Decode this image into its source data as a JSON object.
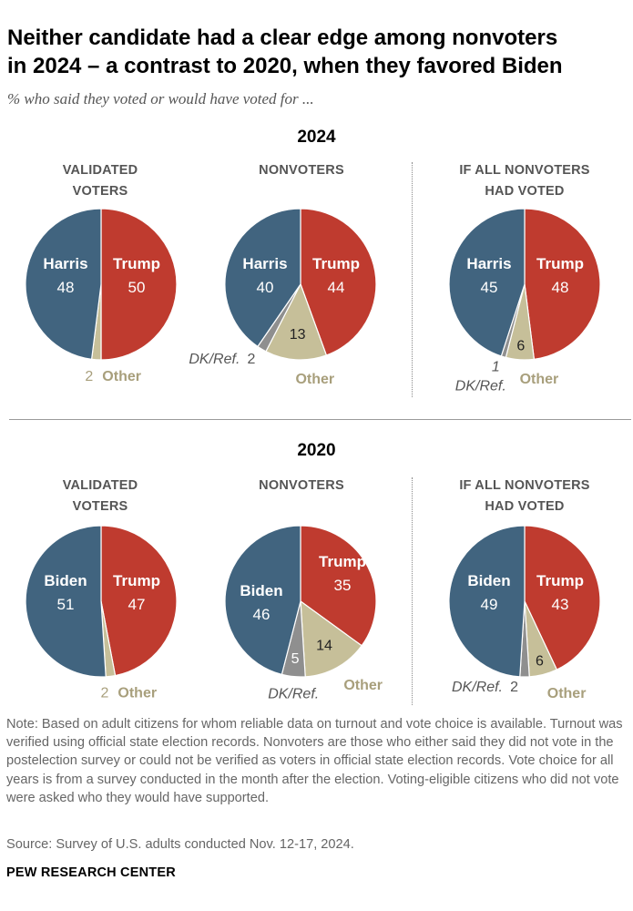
{
  "title_lines": [
    "Neither candidate had a clear edge among nonvoters",
    "in 2024 – a contrast to 2020, when they favored Biden"
  ],
  "subtitle": "% who said they voted or would have voted for ...",
  "colors": {
    "dem": "#41647f",
    "rep": "#bf3b2f",
    "other": "#c6bf99",
    "dk": "#8f8f8f",
    "label_dark": "#222222",
    "label_other": "#a89f7c",
    "label_dk": "#555555"
  },
  "sections": [
    {
      "year": "2024",
      "headers": [
        [
          "VALIDATED",
          "VOTERS"
        ],
        [
          "NONVOTERS"
        ],
        [
          "IF ALL NONVOTERS",
          "HAD VOTED"
        ]
      ]
    },
    {
      "year": "2020",
      "headers": [
        [
          "VALIDATED",
          "VOTERS"
        ],
        [
          "NONVOTERS"
        ],
        [
          "IF ALL NONVOTERS",
          "HAD VOTED"
        ]
      ]
    }
  ],
  "chart_data": [
    {
      "type": "pie",
      "year": "2024",
      "title": "VALIDATED VOTERS",
      "slices": [
        {
          "label": "Trump",
          "value": 50
        },
        {
          "label": "Other",
          "value": 2
        },
        {
          "label": "Harris",
          "value": 48
        }
      ]
    },
    {
      "type": "pie",
      "year": "2024",
      "title": "NONVOTERS",
      "slices": [
        {
          "label": "Trump",
          "value": 44
        },
        {
          "label": "Other",
          "value": 13
        },
        {
          "label": "DK/Ref.",
          "value": 2
        },
        {
          "label": "Harris",
          "value": 40
        }
      ]
    },
    {
      "type": "pie",
      "year": "2024",
      "title": "IF ALL NONVOTERS HAD VOTED",
      "slices": [
        {
          "label": "Trump",
          "value": 48
        },
        {
          "label": "Other",
          "value": 6
        },
        {
          "label": "DK/Ref.",
          "value": 1
        },
        {
          "label": "Harris",
          "value": 45
        }
      ]
    },
    {
      "type": "pie",
      "year": "2020",
      "title": "VALIDATED VOTERS",
      "slices": [
        {
          "label": "Trump",
          "value": 47
        },
        {
          "label": "Other",
          "value": 2
        },
        {
          "label": "Biden",
          "value": 51
        }
      ]
    },
    {
      "type": "pie",
      "year": "2020",
      "title": "NONVOTERS",
      "slices": [
        {
          "label": "Trump",
          "value": 35
        },
        {
          "label": "Other",
          "value": 14
        },
        {
          "label": "DK/Ref.",
          "value": 5
        },
        {
          "label": "Biden",
          "value": 46
        }
      ]
    },
    {
      "type": "pie",
      "year": "2020",
      "title": "IF ALL NONVOTERS HAD VOTED",
      "slices": [
        {
          "label": "Trump",
          "value": 43
        },
        {
          "label": "Other",
          "value": 6
        },
        {
          "label": "DK/Ref.",
          "value": 2
        },
        {
          "label": "Biden",
          "value": 49
        }
      ]
    }
  ],
  "note": "Note: Based on adult citizens for whom reliable data on turnout and vote choice is available. Turnout was verified using official state election records. Nonvoters are those who either said they did not vote in the postelection survey or could not be verified as voters in official state election records. Vote choice for all years is from a survey conducted in the month after the election. Voting-eligible citizens who did not vote were asked who they would have supported.",
  "source": "Source: Survey of U.S. adults conducted Nov. 12-17, 2024.",
  "brand": "PEW RESEARCH CENTER"
}
